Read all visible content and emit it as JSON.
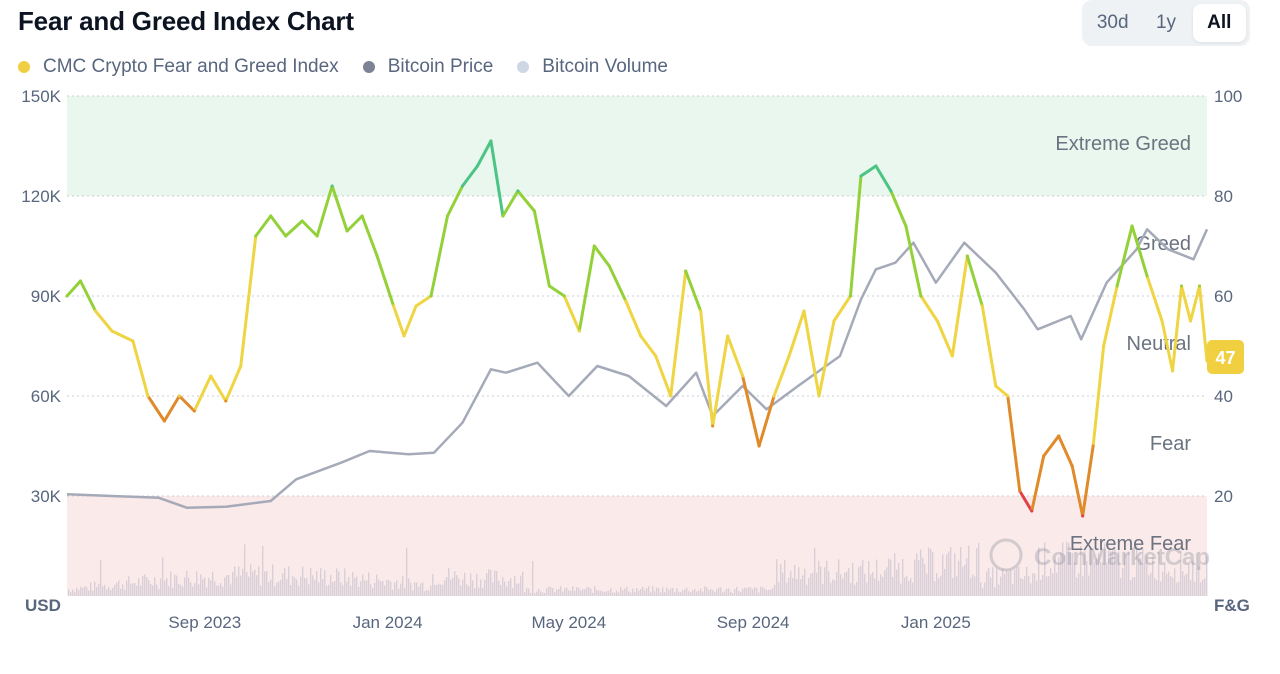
{
  "header": {
    "title": "Fear and Greed Index Chart",
    "ranges": [
      {
        "label": "30d",
        "active": false
      },
      {
        "label": "1y",
        "active": false
      },
      {
        "label": "All",
        "active": true
      }
    ]
  },
  "legend": [
    {
      "label": "CMC Crypto Fear and Greed Index",
      "color": "#f0d040"
    },
    {
      "label": "Bitcoin Price",
      "color": "#7d8294"
    },
    {
      "label": "Bitcoin Volume",
      "color": "#cfd6e4"
    }
  ],
  "chart_data": {
    "type": "line",
    "left_axis": {
      "unit": "USD",
      "ticks": [
        "30K",
        "60K",
        "90K",
        "120K",
        "150K"
      ],
      "ylim": [
        0,
        150000
      ]
    },
    "right_axis": {
      "unit": "F&G",
      "ticks": [
        "20",
        "40",
        "60",
        "80",
        "100"
      ],
      "ylim": [
        0,
        100
      ]
    },
    "x_ticks": [
      {
        "label": "Sep 2023",
        "date": "2023-09-01"
      },
      {
        "label": "Jan 2024",
        "date": "2024-01-01"
      },
      {
        "label": "May 2024",
        "date": "2024-05-01"
      },
      {
        "label": "Sep 2024",
        "date": "2024-09-01"
      },
      {
        "label": "Jan 2025",
        "date": "2025-01-01"
      }
    ],
    "x_range": [
      "2023-06-01",
      "2025-07-01"
    ],
    "zones": [
      {
        "label": "Extreme Greed",
        "from": 80,
        "to": 100,
        "fill": "#e9f7ef"
      },
      {
        "label": "Greed",
        "from": 60,
        "to": 80,
        "fill": "none"
      },
      {
        "label": "Neutral",
        "from": 40,
        "to": 60,
        "fill": "none"
      },
      {
        "label": "Fear",
        "from": 20,
        "to": 40,
        "fill": "none"
      },
      {
        "label": "Extreme Fear",
        "from": 0,
        "to": 20,
        "fill": "#fbeaea"
      }
    ],
    "current_value": "47",
    "current_color": "#f0d040",
    "series": [
      {
        "name": "CMC Crypto Fear and Greed Index",
        "axis": "right",
        "points": [
          [
            "2023-06-01",
            60
          ],
          [
            "2023-06-10",
            63
          ],
          [
            "2023-06-20",
            57
          ],
          [
            "2023-07-01",
            53
          ],
          [
            "2023-07-15",
            51
          ],
          [
            "2023-07-25",
            40
          ],
          [
            "2023-08-05",
            35
          ],
          [
            "2023-08-15",
            40
          ],
          [
            "2023-08-25",
            37
          ],
          [
            "2023-09-05",
            44
          ],
          [
            "2023-09-15",
            39
          ],
          [
            "2023-09-25",
            46
          ],
          [
            "2023-10-05",
            72
          ],
          [
            "2023-10-15",
            76
          ],
          [
            "2023-10-25",
            72
          ],
          [
            "2023-11-05",
            75
          ],
          [
            "2023-11-15",
            72
          ],
          [
            "2023-11-25",
            82
          ],
          [
            "2023-12-05",
            73
          ],
          [
            "2023-12-15",
            76
          ],
          [
            "2023-12-25",
            68
          ],
          [
            "2024-01-05",
            58
          ],
          [
            "2024-01-12",
            52
          ],
          [
            "2024-01-20",
            58
          ],
          [
            "2024-01-30",
            60
          ],
          [
            "2024-02-10",
            76
          ],
          [
            "2024-02-20",
            82
          ],
          [
            "2024-03-01",
            86
          ],
          [
            "2024-03-10",
            91
          ],
          [
            "2024-03-18",
            76
          ],
          [
            "2024-03-28",
            81
          ],
          [
            "2024-04-08",
            77
          ],
          [
            "2024-04-18",
            62
          ],
          [
            "2024-04-28",
            60
          ],
          [
            "2024-05-08",
            53
          ],
          [
            "2024-05-18",
            70
          ],
          [
            "2024-05-28",
            66
          ],
          [
            "2024-06-08",
            59
          ],
          [
            "2024-06-18",
            52
          ],
          [
            "2024-06-28",
            48
          ],
          [
            "2024-07-08",
            40
          ],
          [
            "2024-07-18",
            65
          ],
          [
            "2024-07-28",
            57
          ],
          [
            "2024-08-05",
            34
          ],
          [
            "2024-08-15",
            52
          ],
          [
            "2024-08-25",
            44
          ],
          [
            "2024-09-05",
            30
          ],
          [
            "2024-09-15",
            40
          ],
          [
            "2024-09-25",
            48
          ],
          [
            "2024-10-05",
            57
          ],
          [
            "2024-10-15",
            40
          ],
          [
            "2024-10-25",
            55
          ],
          [
            "2024-11-05",
            60
          ],
          [
            "2024-11-12",
            84
          ],
          [
            "2024-11-22",
            86
          ],
          [
            "2024-12-02",
            81
          ],
          [
            "2024-12-12",
            74
          ],
          [
            "2024-12-22",
            60
          ],
          [
            "2025-01-02",
            55
          ],
          [
            "2025-01-12",
            48
          ],
          [
            "2025-01-22",
            68
          ],
          [
            "2025-02-01",
            58
          ],
          [
            "2025-02-10",
            42
          ],
          [
            "2025-02-18",
            40
          ],
          [
            "2025-02-26",
            21
          ],
          [
            "2025-03-06",
            17
          ],
          [
            "2025-03-14",
            28
          ],
          [
            "2025-03-24",
            32
          ],
          [
            "2025-04-02",
            26
          ],
          [
            "2025-04-09",
            16
          ],
          [
            "2025-04-16",
            30
          ],
          [
            "2025-04-23",
            50
          ],
          [
            "2025-05-02",
            62
          ],
          [
            "2025-05-12",
            74
          ],
          [
            "2025-05-22",
            64
          ],
          [
            "2025-06-01",
            55
          ],
          [
            "2025-06-08",
            45
          ],
          [
            "2025-06-14",
            62
          ],
          [
            "2025-06-20",
            55
          ],
          [
            "2025-06-26",
            62
          ],
          [
            "2025-07-01",
            47
          ]
        ]
      },
      {
        "name": "Bitcoin Price",
        "axis": "left",
        "color": "#a5aab8",
        "points": [
          [
            "2023-06-01",
            30500
          ],
          [
            "2023-07-01",
            30000
          ],
          [
            "2023-08-01",
            29500
          ],
          [
            "2023-08-20",
            26500
          ],
          [
            "2023-09-15",
            26800
          ],
          [
            "2023-10-15",
            28500
          ],
          [
            "2023-11-01",
            35000
          ],
          [
            "2023-12-01",
            40000
          ],
          [
            "2023-12-20",
            43500
          ],
          [
            "2024-01-15",
            42500
          ],
          [
            "2024-02-01",
            43000
          ],
          [
            "2024-02-20",
            52000
          ],
          [
            "2024-03-10",
            68000
          ],
          [
            "2024-03-20",
            67000
          ],
          [
            "2024-04-10",
            70000
          ],
          [
            "2024-05-01",
            60000
          ],
          [
            "2024-05-20",
            69000
          ],
          [
            "2024-06-10",
            66000
          ],
          [
            "2024-07-05",
            57000
          ],
          [
            "2024-07-25",
            67000
          ],
          [
            "2024-08-05",
            54000
          ],
          [
            "2024-08-25",
            63000
          ],
          [
            "2024-09-10",
            56000
          ],
          [
            "2024-10-01",
            63000
          ],
          [
            "2024-10-29",
            72000
          ],
          [
            "2024-11-12",
            89000
          ],
          [
            "2024-11-22",
            98000
          ],
          [
            "2024-12-05",
            100000
          ],
          [
            "2024-12-17",
            106000
          ],
          [
            "2025-01-01",
            94000
          ],
          [
            "2025-01-20",
            106000
          ],
          [
            "2025-02-10",
            97000
          ],
          [
            "2025-03-01",
            86000
          ],
          [
            "2025-03-10",
            80000
          ],
          [
            "2025-04-01",
            84000
          ],
          [
            "2025-04-08",
            77000
          ],
          [
            "2025-04-25",
            94000
          ],
          [
            "2025-05-15",
            104000
          ],
          [
            "2025-05-22",
            110000
          ],
          [
            "2025-06-05",
            104000
          ],
          [
            "2025-06-22",
            101000
          ],
          [
            "2025-07-01",
            110000
          ]
        ]
      },
      {
        "name": "Bitcoin Volume",
        "axis": "left",
        "color": "#d7cdd8"
      }
    ]
  },
  "watermark": "CoinMarketCap"
}
